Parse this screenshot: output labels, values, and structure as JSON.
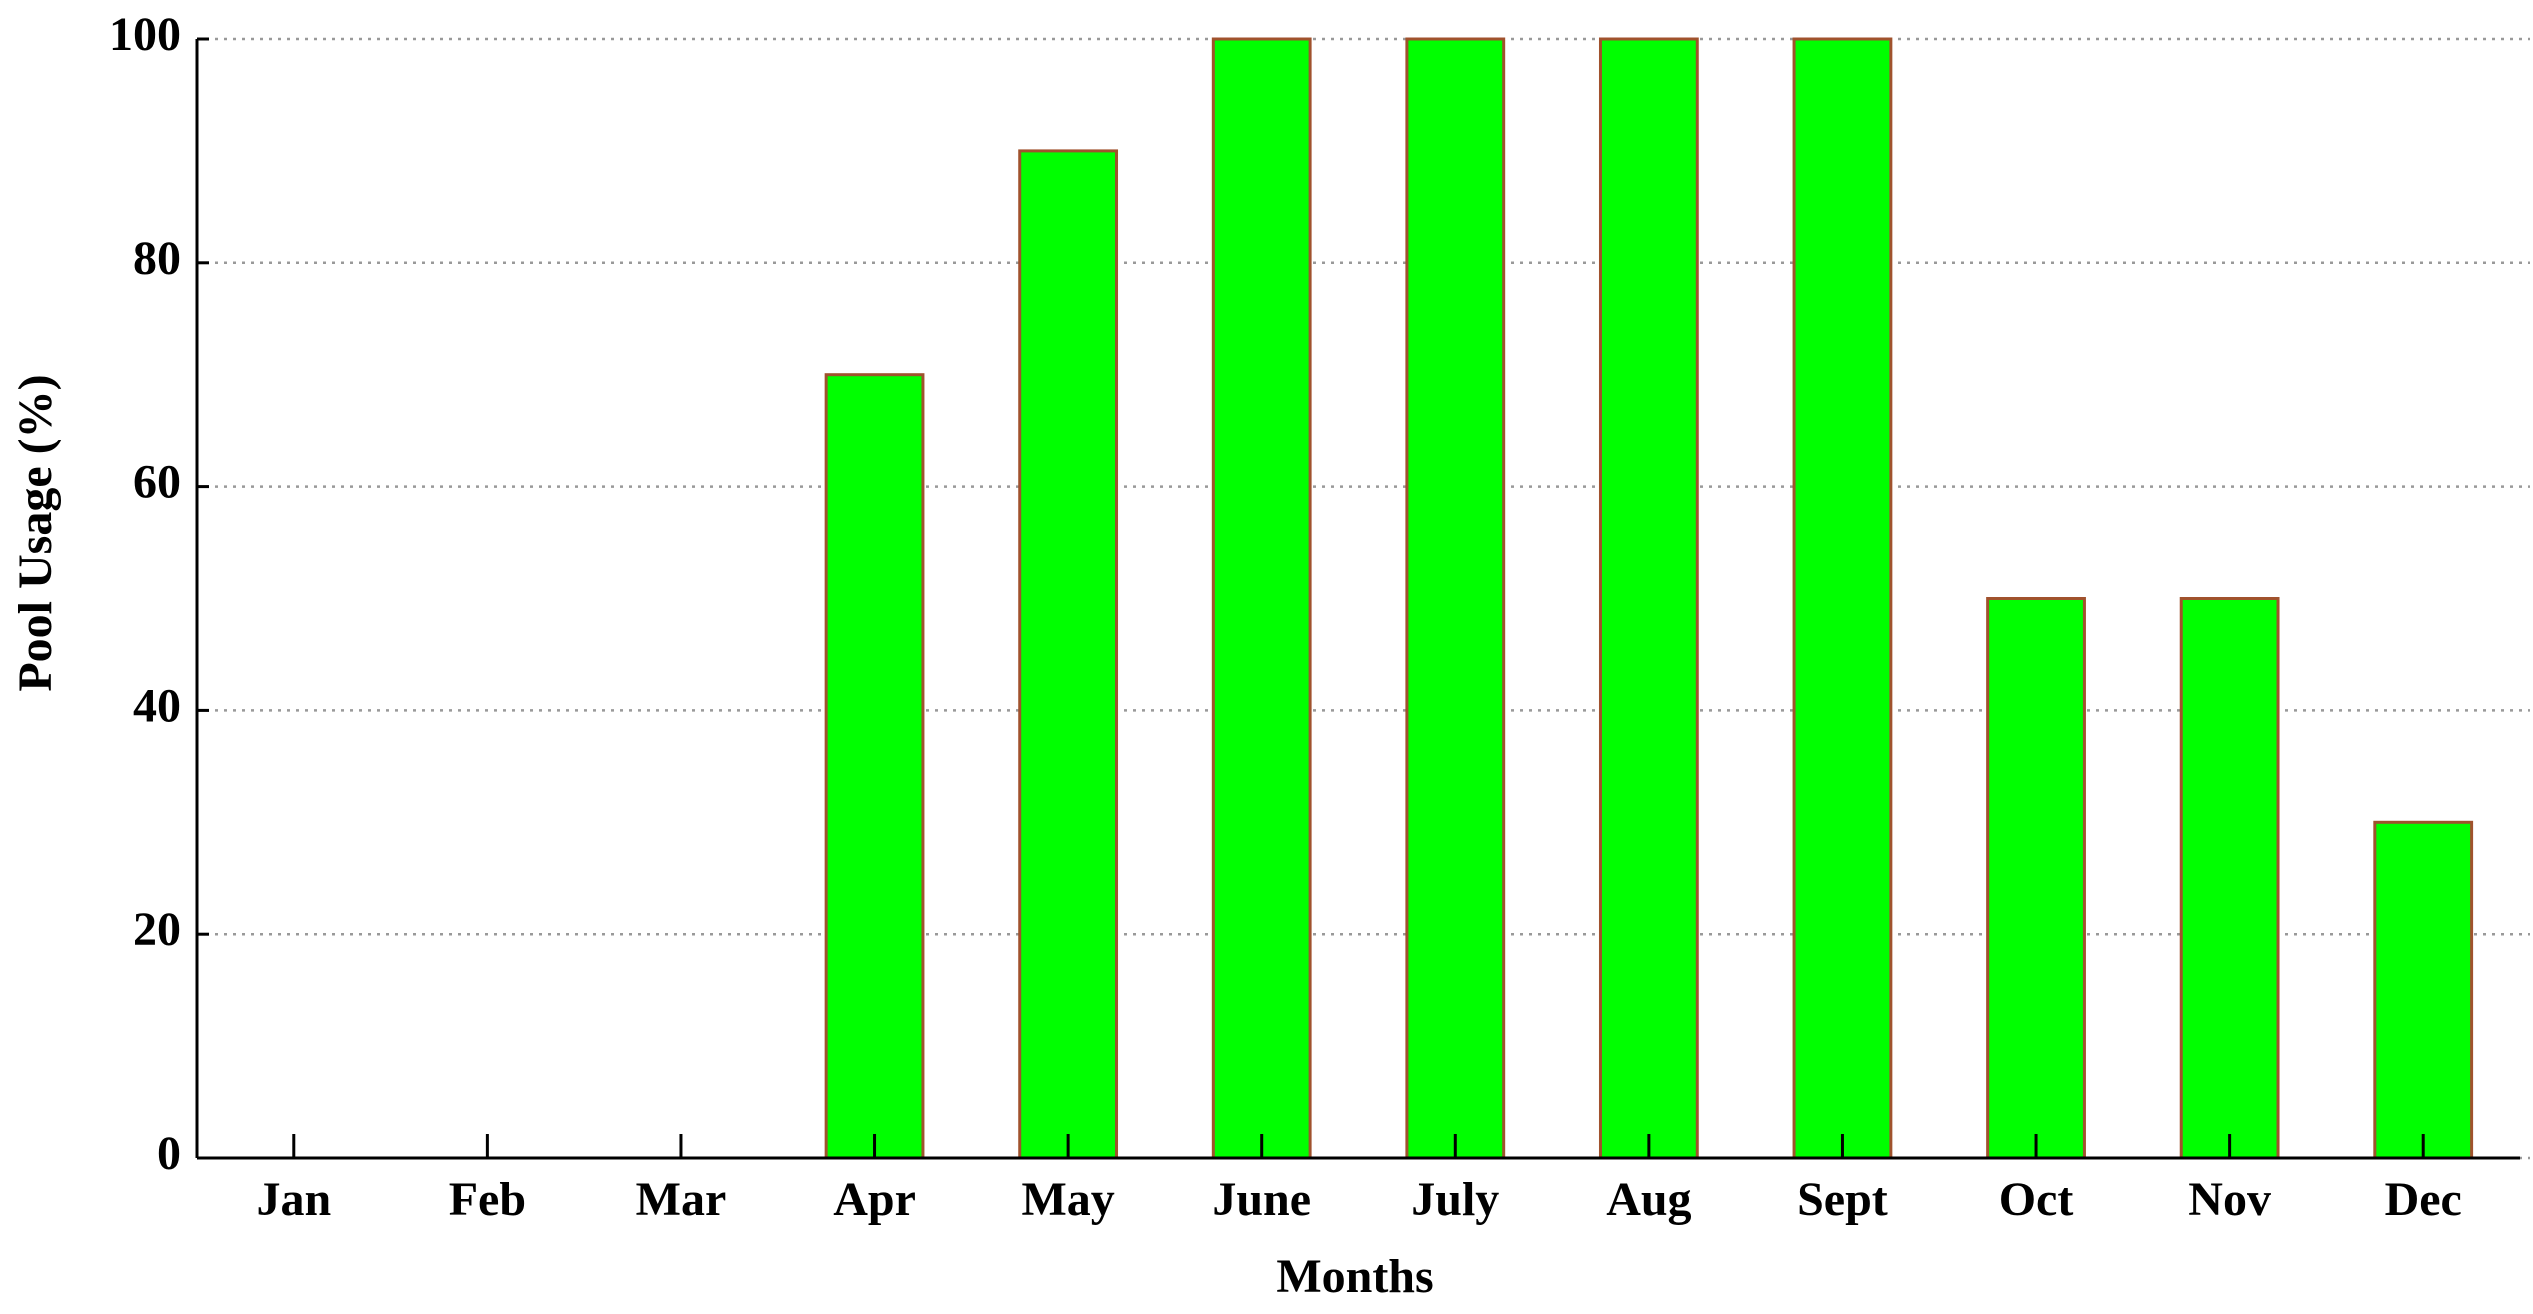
{
  "chart_data": {
    "type": "bar",
    "categories": [
      "Jan",
      "Feb",
      "Mar",
      "Apr",
      "May",
      "June",
      "July",
      "Aug",
      "Sept",
      "Oct",
      "Nov",
      "Dec"
    ],
    "values": [
      0,
      0,
      0,
      70,
      90,
      100,
      100,
      100,
      100,
      50,
      50,
      30
    ],
    "color": "#00ff00",
    "edge_color": "#a0522d",
    "xlabel": "Months",
    "ylabel": "Pool Usage  (%)",
    "ylim": [
      0,
      100
    ],
    "yticks": [
      0,
      20,
      40,
      60,
      80,
      100
    ],
    "grid": true
  }
}
